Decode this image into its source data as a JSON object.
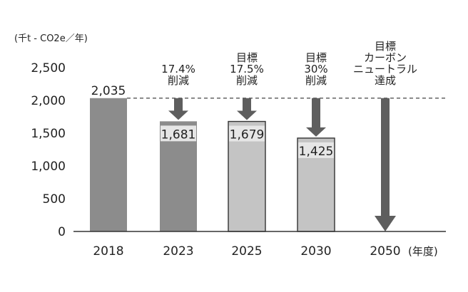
{
  "chart_data": {
    "type": "bar",
    "ylabel": "(千t - CO2e／年)",
    "xunit": "(年度)",
    "ylim": [
      0,
      2500
    ],
    "yticks": [
      "0",
      "500",
      "1,000",
      "1,500",
      "2,000",
      "2,500"
    ],
    "categories": [
      "2018",
      "2023",
      "2025",
      "2030",
      "2050"
    ],
    "values": [
      2035,
      1681,
      1679,
      1425,
      0
    ],
    "data_labels": [
      "2,035",
      "1,681",
      "1,679",
      "1,425",
      ""
    ],
    "bar_kind": [
      "actual",
      "actual",
      "target",
      "target",
      "none"
    ],
    "reference_line": 2035,
    "annotations": [
      {
        "category": "2023",
        "lines": [
          "17.4%",
          "削減"
        ]
      },
      {
        "category": "2025",
        "lines": [
          "目標",
          "17.5%",
          "削減"
        ]
      },
      {
        "category": "2030",
        "lines": [
          "目標",
          "30%",
          "削減"
        ]
      },
      {
        "category": "2050",
        "lines": [
          "目標",
          "カーボン",
          "ニュートラル",
          "達成"
        ]
      }
    ],
    "colors": {
      "actual": "#8c8c8c",
      "target": "#c4c4c4",
      "arrow": "#5e5e5e",
      "outline": "#333333",
      "refline": "#555555"
    }
  }
}
